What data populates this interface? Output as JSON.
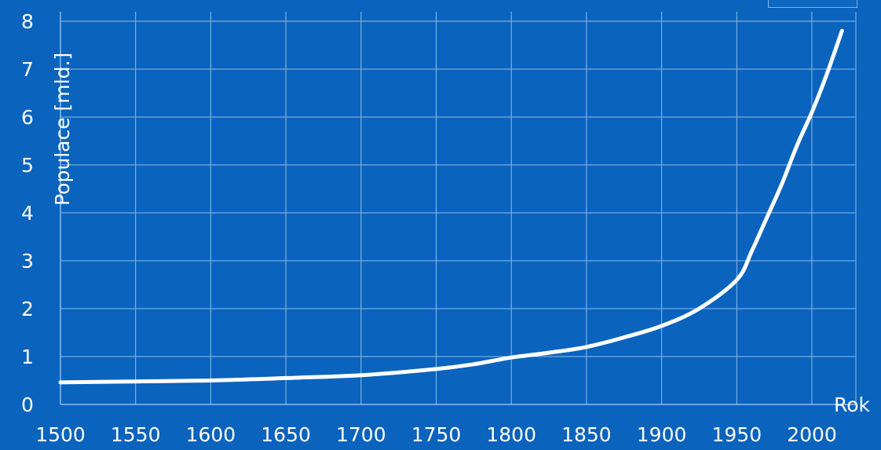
{
  "colors": {
    "background": "#0a63bd",
    "grid": "#8fbde8",
    "line": "#ffffff",
    "text": "#ffffff"
  },
  "chart_data": {
    "type": "line",
    "title": "",
    "xlabel": "Rok",
    "ylabel": "Populace [mld.]",
    "xlim": [
      1500,
      2020
    ],
    "ylim": [
      0,
      8
    ],
    "xticks": [
      "1500",
      "1550",
      "1600",
      "1650",
      "1700",
      "1750",
      "1800",
      "1850",
      "1900",
      "1950",
      "2000"
    ],
    "yticks": [
      "0",
      "1",
      "2",
      "3",
      "4",
      "5",
      "6",
      "7",
      "8"
    ],
    "grid": true,
    "series": [
      {
        "x": [
          1500,
          1550,
          1600,
          1650,
          1700,
          1750,
          1775,
          1800,
          1825,
          1850,
          1875,
          1900,
          1925,
          1950,
          1960,
          1970,
          1980,
          1990,
          2000,
          2010,
          2020
        ],
        "y": [
          0.46,
          0.48,
          0.5,
          0.55,
          0.61,
          0.74,
          0.84,
          0.98,
          1.08,
          1.2,
          1.4,
          1.64,
          2.0,
          2.6,
          3.2,
          3.9,
          4.6,
          5.4,
          6.1,
          6.9,
          7.8
        ]
      }
    ]
  }
}
